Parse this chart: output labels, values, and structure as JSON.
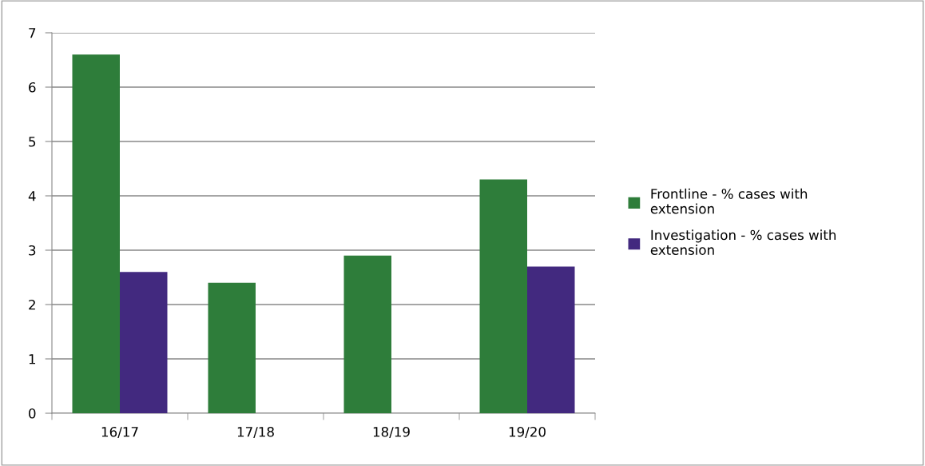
{
  "chart_data": {
    "type": "bar",
    "categories": [
      "16/17",
      "17/18",
      "18/19",
      "19/20"
    ],
    "series": [
      {
        "name": "Frontline - % cases with extension",
        "color": "#2e7d3a",
        "values": [
          6.6,
          2.4,
          2.9,
          4.3
        ]
      },
      {
        "name": "Investigation - % cases with extension",
        "color": "#42297f",
        "values": [
          2.6,
          null,
          null,
          2.7
        ]
      }
    ],
    "ylim": [
      0,
      7
    ],
    "yticks": [
      0,
      1,
      2,
      3,
      4,
      5,
      6,
      7
    ],
    "grid": "y",
    "legend": "right"
  }
}
